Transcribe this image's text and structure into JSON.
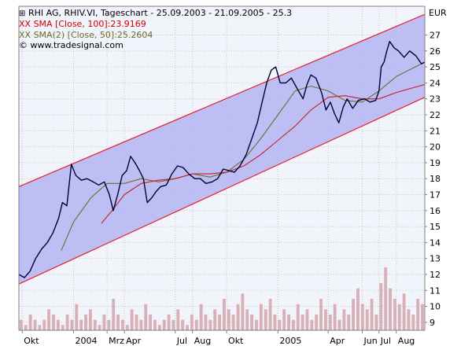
{
  "header": {
    "title": "RHI AG, RHIV.VI, Tageschart - 25.09.2003 - 21.09.2005 - 25.3",
    "sma100_label": "SMA [Close, 100]:23.9169",
    "sma50_label": "SMA(2) [Close, 50]:25.2604",
    "copyright": "© www.tradesignal.com",
    "sma_marker": "XX"
  },
  "colors": {
    "background": "#ffffff",
    "plot_background": "#f2f4fb",
    "grid": "#c8c8c8",
    "channel_fill": "#b4b4f2",
    "channel_line": "#e8202a",
    "price": "#000033",
    "sma100": "#c81e2a",
    "sma50": "#6e6e32",
    "volume": "#d8b0b6"
  },
  "chart_data": {
    "type": "line",
    "currency": "EUR",
    "x_ticks": [
      {
        "label": "Okt",
        "date": "2003-10-01"
      },
      {
        "label": "2004",
        "date": "2004-01-01"
      },
      {
        "label": "Mrz",
        "date": "2004-03-01"
      },
      {
        "label": "Apr",
        "date": "2004-04-01"
      },
      {
        "label": "Jul",
        "date": "2004-07-01"
      },
      {
        "label": "Aug",
        "date": "2004-08-01"
      },
      {
        "label": "Okt",
        "date": "2004-10-01"
      },
      {
        "label": "2005",
        "date": "2005-01-01"
      },
      {
        "label": "Apr",
        "date": "2005-04-01"
      },
      {
        "label": "Jun",
        "date": "2005-06-01"
      },
      {
        "label": "Jul",
        "date": "2005-07-01"
      },
      {
        "label": "Aug",
        "date": "2005-08-01"
      }
    ],
    "x_range": [
      "2003-09-25",
      "2005-09-21"
    ],
    "y_ticks": [
      9,
      10,
      11,
      12,
      13,
      14,
      15,
      16,
      17,
      18,
      19,
      20,
      21,
      22,
      23,
      24,
      25,
      26,
      27
    ],
    "ylim": [
      8.5,
      28.8
    ],
    "grid": true,
    "series": [
      {
        "name": "RHI AG",
        "style": "price",
        "points": [
          [
            "2003-09-25",
            12.0
          ],
          [
            "2003-10-05",
            11.8
          ],
          [
            "2003-10-15",
            12.2
          ],
          [
            "2003-10-25",
            13.0
          ],
          [
            "2003-11-05",
            13.6
          ],
          [
            "2003-11-15",
            14.0
          ],
          [
            "2003-11-25",
            14.6
          ],
          [
            "2003-12-05",
            15.5
          ],
          [
            "2003-12-12",
            16.5
          ],
          [
            "2003-12-20",
            16.3
          ],
          [
            "2003-12-28",
            18.9
          ],
          [
            "2004-01-05",
            18.2
          ],
          [
            "2004-01-15",
            17.9
          ],
          [
            "2004-01-25",
            18.0
          ],
          [
            "2004-02-05",
            17.8
          ],
          [
            "2004-02-15",
            17.6
          ],
          [
            "2004-02-25",
            17.8
          ],
          [
            "2004-03-05",
            17.0
          ],
          [
            "2004-03-12",
            16.0
          ],
          [
            "2004-03-20",
            17.0
          ],
          [
            "2004-03-28",
            18.2
          ],
          [
            "2004-04-05",
            18.5
          ],
          [
            "2004-04-12",
            19.4
          ],
          [
            "2004-04-20",
            19.0
          ],
          [
            "2004-04-28",
            18.5
          ],
          [
            "2004-05-05",
            18.0
          ],
          [
            "2004-05-12",
            16.5
          ],
          [
            "2004-05-20",
            16.8
          ],
          [
            "2004-05-28",
            17.2
          ],
          [
            "2004-06-05",
            17.5
          ],
          [
            "2004-06-15",
            17.6
          ],
          [
            "2004-06-25",
            18.3
          ],
          [
            "2004-07-05",
            18.8
          ],
          [
            "2004-07-15",
            18.7
          ],
          [
            "2004-07-25",
            18.3
          ],
          [
            "2004-08-05",
            18.0
          ],
          [
            "2004-08-15",
            18.0
          ],
          [
            "2004-08-25",
            17.7
          ],
          [
            "2004-09-05",
            17.8
          ],
          [
            "2004-09-15",
            18.0
          ],
          [
            "2004-09-25",
            18.6
          ],
          [
            "2004-10-05",
            18.5
          ],
          [
            "2004-10-15",
            18.4
          ],
          [
            "2004-10-25",
            18.8
          ],
          [
            "2004-11-05",
            19.5
          ],
          [
            "2004-11-15",
            20.5
          ],
          [
            "2004-11-25",
            21.5
          ],
          [
            "2004-12-05",
            23.0
          ],
          [
            "2004-12-12",
            24.0
          ],
          [
            "2004-12-20",
            24.8
          ],
          [
            "2004-12-28",
            25.0
          ],
          [
            "2005-01-05",
            24.0
          ],
          [
            "2005-01-15",
            24.0
          ],
          [
            "2005-01-25",
            24.3
          ],
          [
            "2005-02-05",
            23.6
          ],
          [
            "2005-02-15",
            23.0
          ],
          [
            "2005-02-22",
            23.9
          ],
          [
            "2005-03-01",
            24.5
          ],
          [
            "2005-03-10",
            24.3
          ],
          [
            "2005-03-20",
            23.4
          ],
          [
            "2005-03-28",
            22.3
          ],
          [
            "2005-04-05",
            22.8
          ],
          [
            "2005-04-12",
            22.1
          ],
          [
            "2005-04-20",
            21.5
          ],
          [
            "2005-04-28",
            22.5
          ],
          [
            "2005-05-05",
            23.0
          ],
          [
            "2005-05-15",
            22.4
          ],
          [
            "2005-05-25",
            22.9
          ],
          [
            "2005-06-05",
            23.0
          ],
          [
            "2005-06-15",
            22.8
          ],
          [
            "2005-06-25",
            22.9
          ],
          [
            "2005-07-01",
            23.5
          ],
          [
            "2005-07-05",
            25.0
          ],
          [
            "2005-07-10",
            25.3
          ],
          [
            "2005-07-15",
            26.0
          ],
          [
            "2005-07-20",
            26.6
          ],
          [
            "2005-07-28",
            26.2
          ],
          [
            "2005-08-05",
            26.0
          ],
          [
            "2005-08-15",
            25.6
          ],
          [
            "2005-08-25",
            26.0
          ],
          [
            "2005-09-05",
            25.7
          ],
          [
            "2005-09-15",
            25.2
          ],
          [
            "2005-09-21",
            25.3
          ]
        ]
      },
      {
        "name": "SMA [Close, 100]",
        "style": "sma100",
        "points": [
          [
            "2004-02-20",
            15.2
          ],
          [
            "2004-03-10",
            16.0
          ],
          [
            "2004-04-01",
            17.0
          ],
          [
            "2004-05-01",
            17.7
          ],
          [
            "2004-06-01",
            17.9
          ],
          [
            "2004-07-01",
            18.0
          ],
          [
            "2004-08-01",
            18.3
          ],
          [
            "2004-09-01",
            18.3
          ],
          [
            "2004-10-01",
            18.4
          ],
          [
            "2004-11-01",
            18.8
          ],
          [
            "2004-12-01",
            19.5
          ],
          [
            "2005-01-01",
            20.4
          ],
          [
            "2005-02-01",
            21.3
          ],
          [
            "2005-03-01",
            22.3
          ],
          [
            "2005-04-01",
            23.1
          ],
          [
            "2005-05-01",
            23.2
          ],
          [
            "2005-06-01",
            23.0
          ],
          [
            "2005-07-01",
            23.0
          ],
          [
            "2005-08-01",
            23.4
          ],
          [
            "2005-09-21",
            23.9
          ]
        ]
      },
      {
        "name": "SMA(2) [Close, 50]",
        "style": "sma50",
        "points": [
          [
            "2003-12-10",
            13.5
          ],
          [
            "2004-01-01",
            15.3
          ],
          [
            "2004-02-01",
            16.8
          ],
          [
            "2004-03-01",
            17.7
          ],
          [
            "2004-04-01",
            17.7
          ],
          [
            "2004-05-01",
            18.0
          ],
          [
            "2004-06-01",
            17.8
          ],
          [
            "2004-07-01",
            18.0
          ],
          [
            "2004-08-01",
            18.3
          ],
          [
            "2004-09-01",
            18.1
          ],
          [
            "2004-10-01",
            18.4
          ],
          [
            "2004-11-01",
            19.2
          ],
          [
            "2004-12-01",
            20.5
          ],
          [
            "2005-01-01",
            22.0
          ],
          [
            "2005-02-01",
            23.5
          ],
          [
            "2005-03-01",
            23.8
          ],
          [
            "2005-04-01",
            23.5
          ],
          [
            "2005-05-01",
            22.9
          ],
          [
            "2005-06-01",
            22.8
          ],
          [
            "2005-07-01",
            23.5
          ],
          [
            "2005-08-01",
            24.4
          ],
          [
            "2005-09-21",
            25.3
          ]
        ]
      }
    ],
    "channel": {
      "upper": [
        [
          "2003-09-25",
          17.5
        ],
        [
          "2005-09-21",
          28.3
        ]
      ],
      "lower": [
        [
          "2003-09-25",
          11.4
        ],
        [
          "2005-09-21",
          23.1
        ]
      ]
    },
    "volume": [
      2,
      1,
      3,
      2,
      1,
      2,
      4,
      3,
      2,
      1,
      3,
      2,
      5,
      2,
      3,
      4,
      2,
      1,
      3,
      2,
      6,
      3,
      2,
      1,
      4,
      3,
      2,
      5,
      3,
      2,
      1,
      2,
      3,
      2,
      4,
      2,
      1,
      3,
      2,
      5,
      3,
      2,
      4,
      3,
      6,
      4,
      3,
      5,
      7,
      4,
      3,
      2,
      5,
      4,
      6,
      3,
      2,
      4,
      3,
      2,
      5,
      3,
      4,
      2,
      3,
      6,
      4,
      3,
      5,
      2,
      4,
      3,
      6,
      8,
      5,
      4,
      6,
      3,
      9,
      12,
      8,
      6,
      5,
      7,
      4,
      3,
      6,
      5
    ]
  }
}
